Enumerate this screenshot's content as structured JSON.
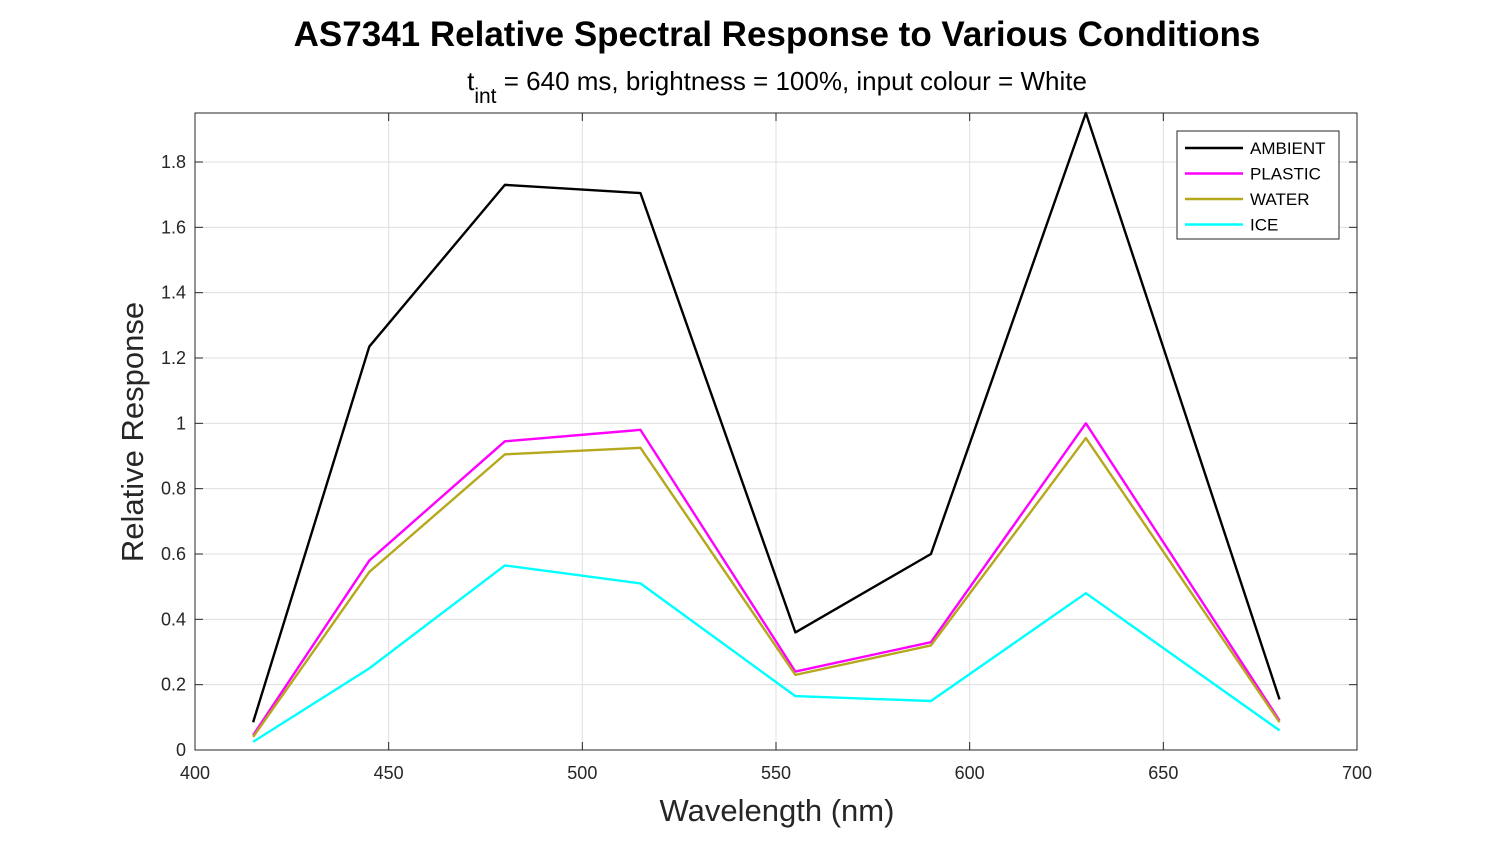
{
  "chart_data": {
    "type": "line",
    "title": "AS7341 Relative Spectral Response to Various Conditions",
    "subtitle": {
      "t": "t",
      "sub": "int",
      "rest": " = 640 ms, brightness = 100%, input colour = White"
    },
    "xlabel": "Wavelength (nm)",
    "ylabel": "Relative Response",
    "xlim": [
      400,
      700
    ],
    "ylim": [
      0,
      1.95
    ],
    "xticks": [
      400,
      450,
      500,
      550,
      600,
      650,
      700
    ],
    "xtick_labels": [
      "400",
      "450",
      "500",
      "550",
      "600",
      "650",
      "700"
    ],
    "yticks": [
      0,
      0.2,
      0.4,
      0.6,
      0.8,
      1,
      1.2,
      1.4,
      1.6,
      1.8
    ],
    "ytick_labels": [
      "0",
      "0.2",
      "0.4",
      "0.6",
      "0.8",
      "1",
      "1.2",
      "1.4",
      "1.6",
      "1.8"
    ],
    "grid": true,
    "legend_position": "top-right",
    "x": [
      415,
      445,
      480,
      515,
      555,
      590,
      630,
      680
    ],
    "series": [
      {
        "name": "AMBIENT",
        "color": "#000000",
        "values": [
          0.085,
          1.235,
          1.73,
          1.705,
          0.36,
          0.6,
          1.95,
          0.155
        ]
      },
      {
        "name": "PLASTIC",
        "color": "#ff00ff",
        "values": [
          0.045,
          0.58,
          0.945,
          0.98,
          0.24,
          0.33,
          1.0,
          0.09
        ]
      },
      {
        "name": "WATER",
        "color": "#b5a81c",
        "values": [
          0.04,
          0.545,
          0.905,
          0.925,
          0.23,
          0.32,
          0.955,
          0.085
        ]
      },
      {
        "name": "ICE",
        "color": "#00ffff",
        "values": [
          0.025,
          0.25,
          0.565,
          0.51,
          0.165,
          0.15,
          0.48,
          0.06
        ]
      }
    ]
  }
}
